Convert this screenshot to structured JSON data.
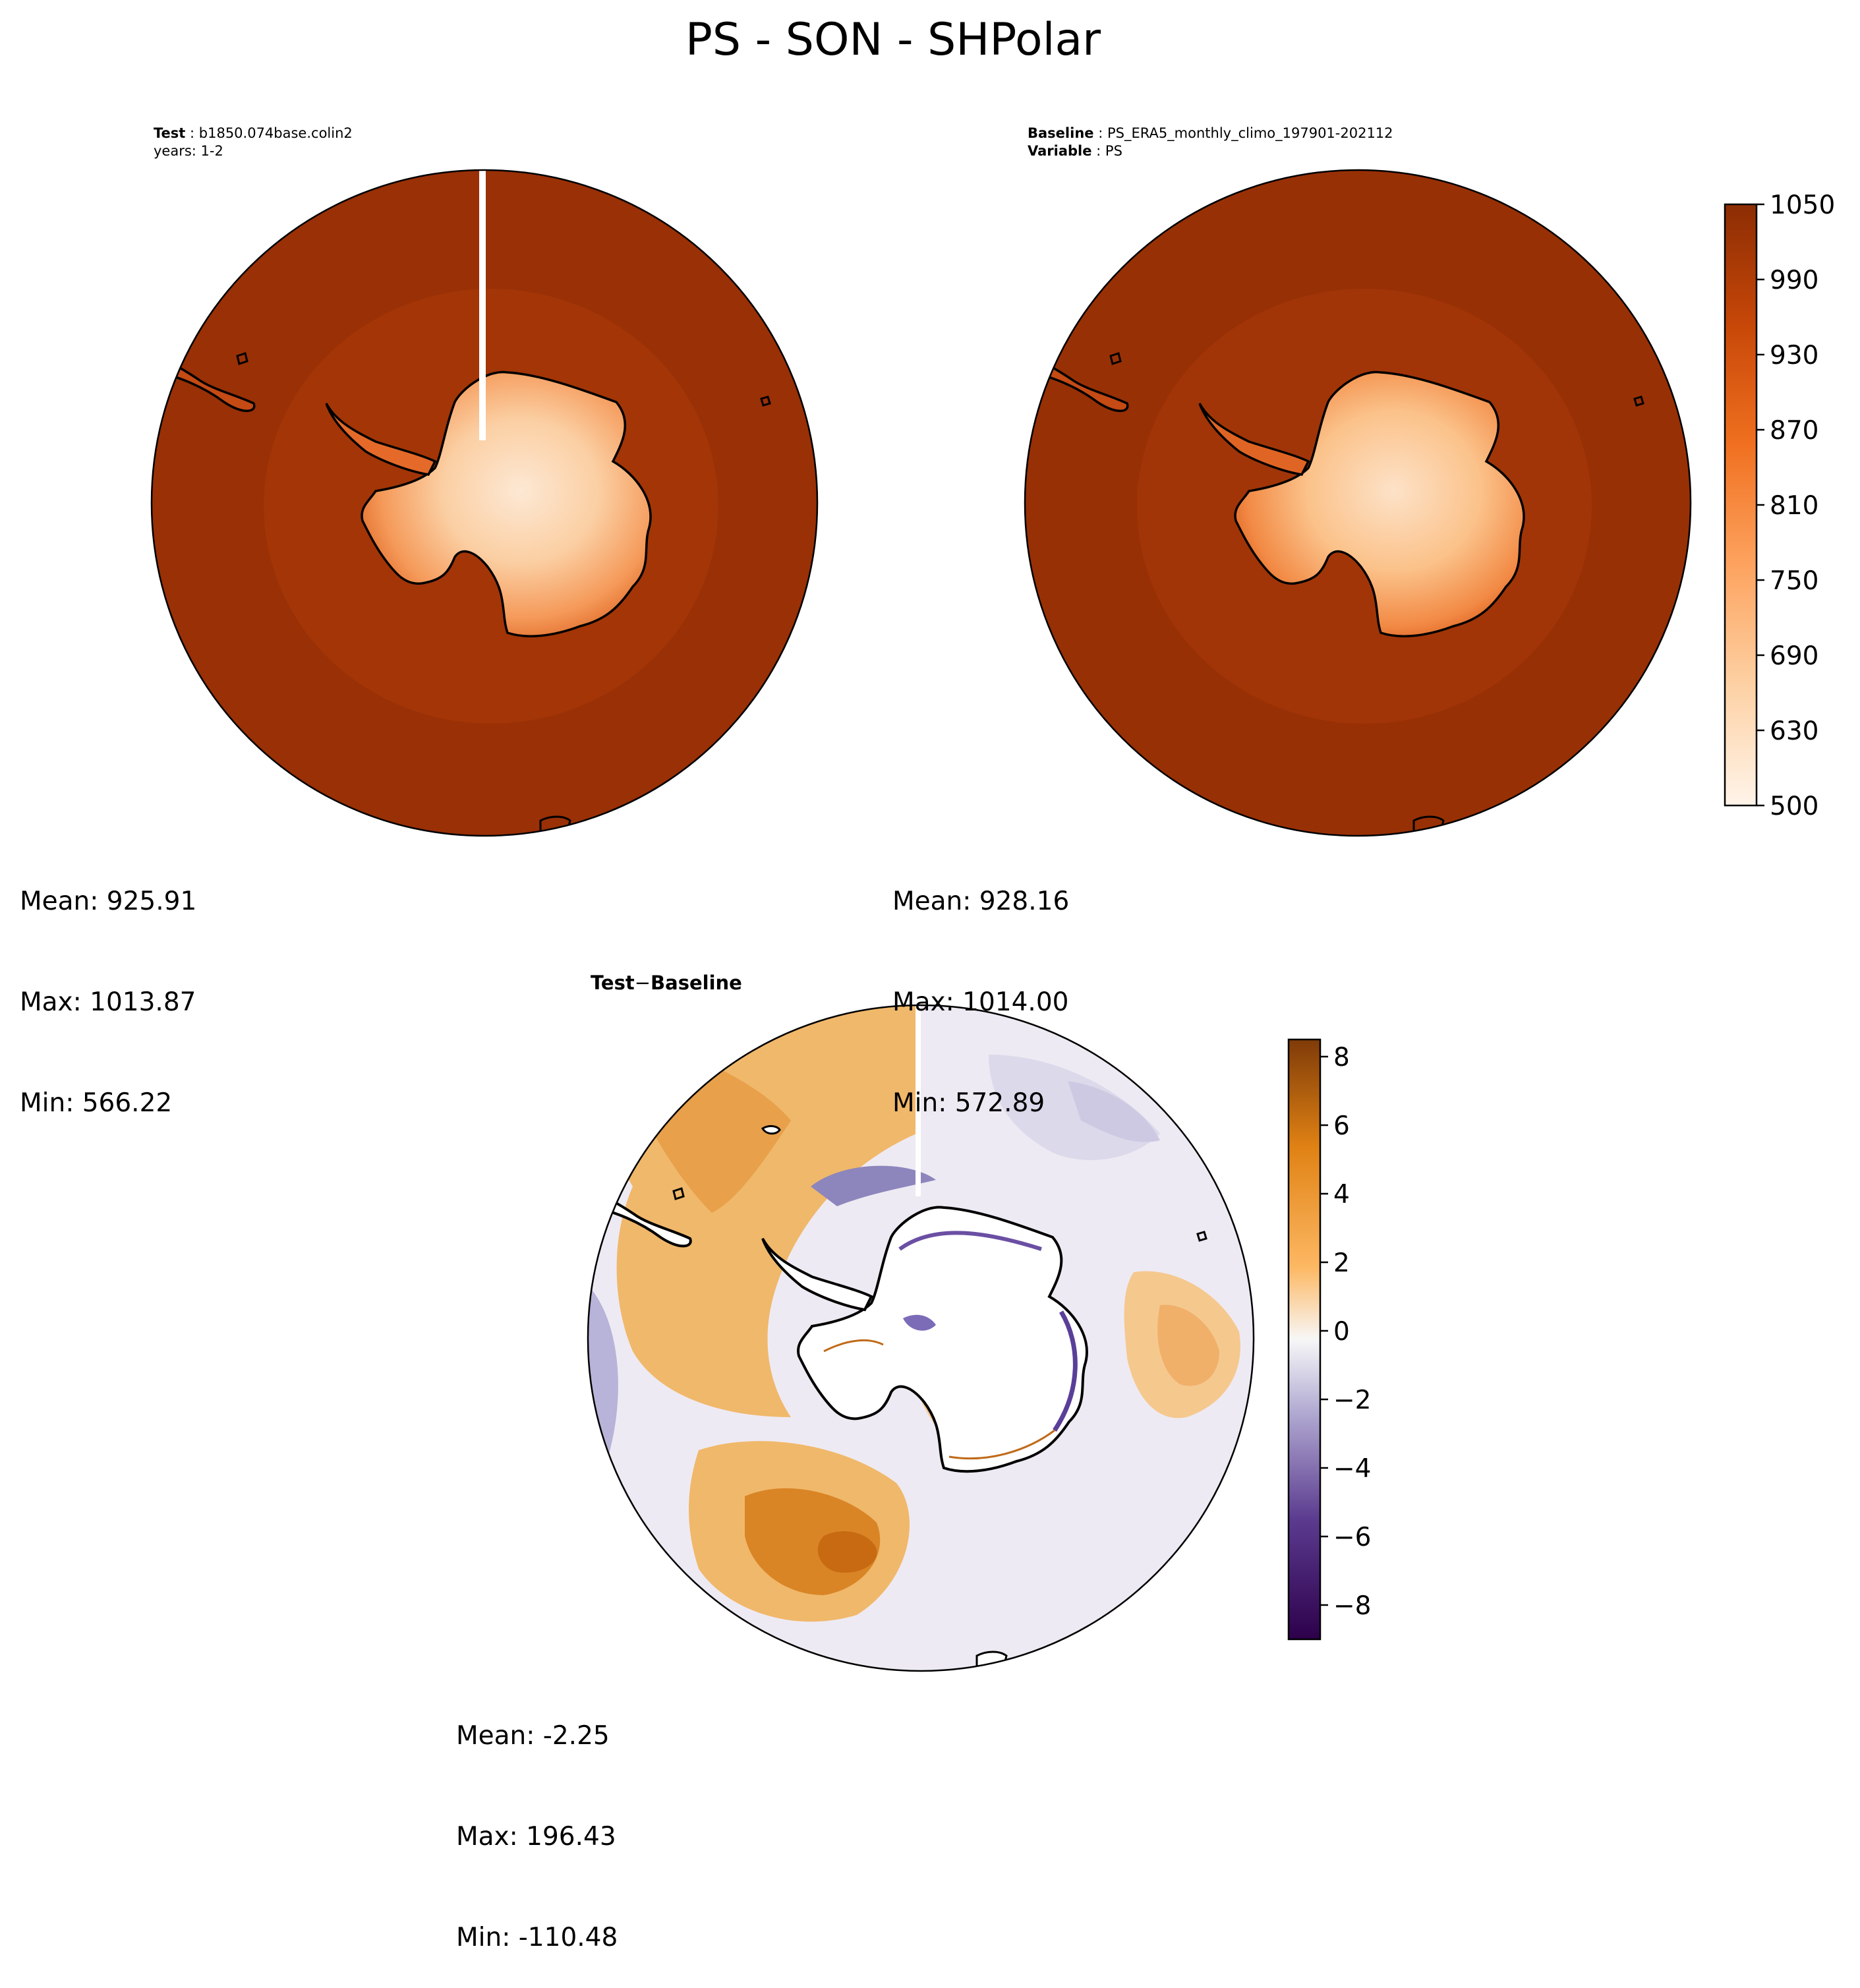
{
  "title": "PS - SON - SHPolar",
  "panels": {
    "test": {
      "label_key": "Test",
      "label_value": "b1850.074base.colin2",
      "subline": "years: 1-2",
      "stats": {
        "mean": "Mean: 925.91",
        "max": "Max: 1013.87",
        "min": "Min: 566.22"
      }
    },
    "baseline": {
      "label_key": "Baseline",
      "label_value": "PS_ERA5_monthly_climo_197901-202112",
      "variable_key": "Variable",
      "variable_value": "PS",
      "stats": {
        "mean": "Mean: 928.16",
        "max": "Max: 1014.00",
        "min": "Min: 572.89"
      }
    },
    "diff": {
      "label_left": "Test",
      "label_op": "−",
      "label_right": "Baseline",
      "stats": {
        "mean": "Mean: -2.25",
        "max": "Max: 196.43",
        "min": "Min: -110.48"
      }
    }
  },
  "colors": {
    "ocean_test": "#993006",
    "ring_test": "#a33507",
    "ocean_base": "#983005",
    "ring_base": "#a13508",
    "diff_positive": "#e0902e",
    "diff_strong_positive": "#c86a12",
    "diff_negative": "#c8c6e0",
    "coastline": "#000000"
  },
  "chart_data": [
    {
      "type": "heatmap",
      "panel": "test",
      "projection": "south-polar-stereographic",
      "colormap": "Oranges",
      "levels": [
        500,
        1050
      ],
      "stats": {
        "mean": 925.91,
        "max": 1013.87,
        "min": 566.22
      }
    },
    {
      "type": "heatmap",
      "panel": "baseline",
      "projection": "south-polar-stereographic",
      "colormap": "Oranges",
      "colorbar": {
        "range": [
          500,
          1050
        ],
        "ticks": [
          500,
          630,
          690,
          750,
          810,
          870,
          930,
          990,
          1050
        ],
        "tick_labels": [
          "500",
          "630",
          "690",
          "750",
          "810",
          "870",
          "930",
          "990",
          "1050"
        ]
      },
      "stats": {
        "mean": 928.16,
        "max": 1014.0,
        "min": 572.89
      }
    },
    {
      "type": "heatmap",
      "panel": "diff",
      "projection": "south-polar-stereographic",
      "colormap": "PuOr_r",
      "colorbar": {
        "range": [
          -9,
          8.5
        ],
        "ticks": [
          -8,
          -6,
          -4,
          -2,
          0,
          2,
          4,
          6,
          8
        ],
        "tick_labels": [
          "−8",
          "−6",
          "−4",
          "−2",
          "0",
          "2",
          "4",
          "6",
          "8"
        ]
      },
      "stats": {
        "mean": -2.25,
        "max": 196.43,
        "min": -110.48
      }
    }
  ]
}
